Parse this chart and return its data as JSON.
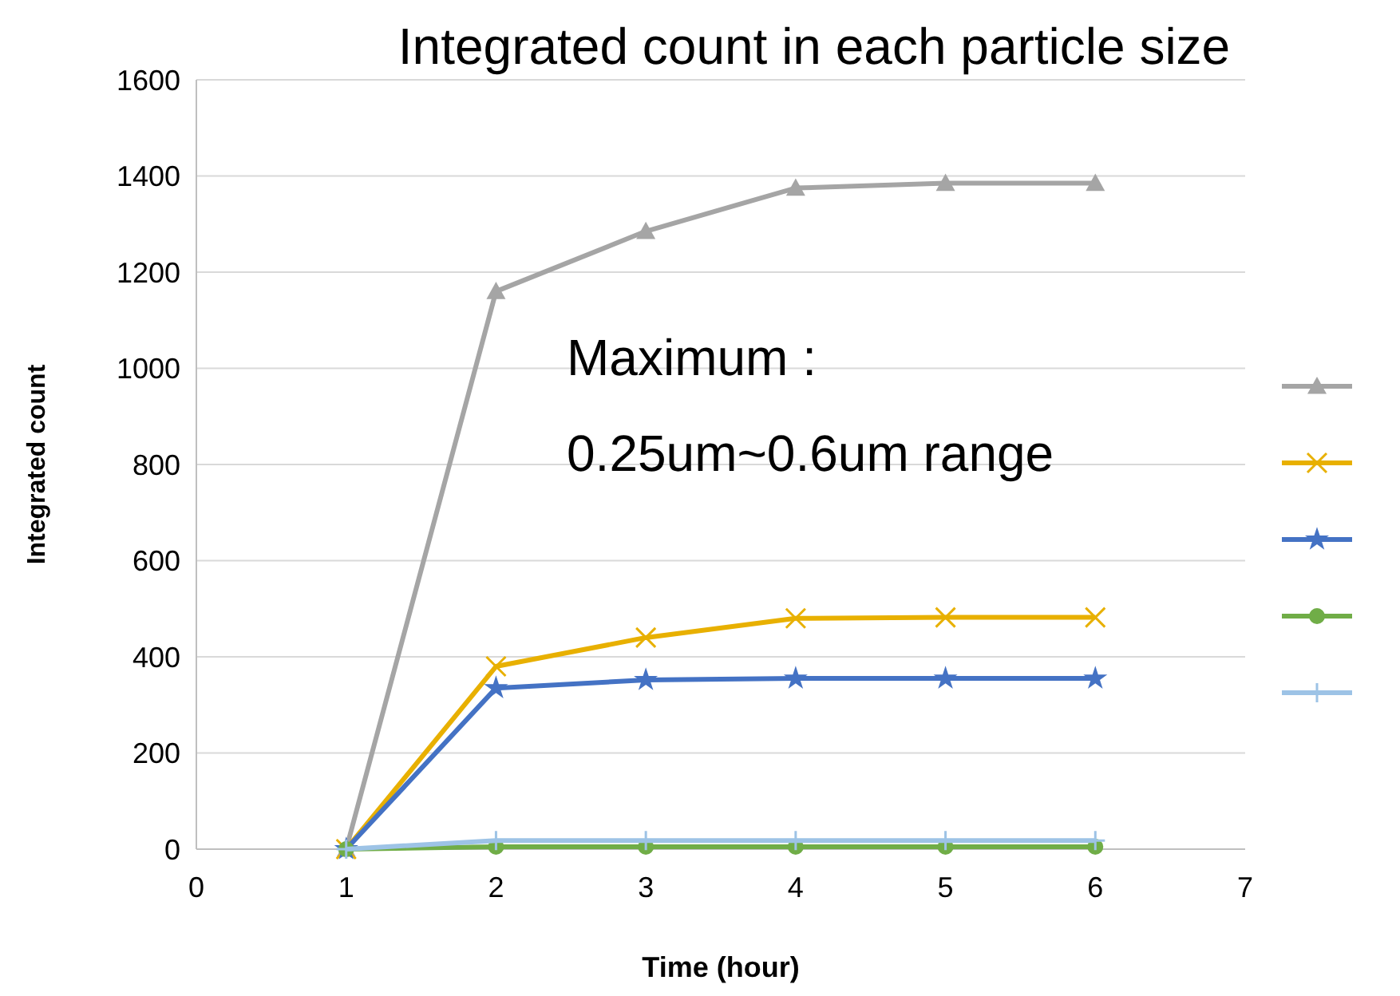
{
  "chart_data": {
    "type": "line",
    "title": "Integrated count in each particle size",
    "xlabel": "Time (hour)",
    "ylabel": "Integrated count",
    "x": [
      1,
      2,
      3,
      4,
      5,
      6
    ],
    "series": [
      {
        "color": "#a5a5a5",
        "marker": "triangle",
        "values": [
          0,
          1160,
          1285,
          1375,
          1385,
          1385
        ]
      },
      {
        "color": "#e8b000",
        "marker": "cross",
        "values": [
          0,
          380,
          440,
          480,
          482,
          482
        ]
      },
      {
        "color": "#4472c4",
        "marker": "star",
        "values": [
          0,
          335,
          352,
          355,
          355,
          355
        ]
      },
      {
        "color": "#70ad47",
        "marker": "circle",
        "values": [
          0,
          5,
          5,
          5,
          5,
          5
        ]
      },
      {
        "color": "#9dc3e6",
        "marker": "plus",
        "values": [
          0,
          18,
          18,
          18,
          18,
          18
        ]
      }
    ],
    "xlim": [
      0,
      7
    ],
    "xticks": [
      0,
      1,
      2,
      3,
      4,
      5,
      6,
      7
    ],
    "ylim": [
      0,
      1600
    ],
    "yticks": [
      0,
      200,
      400,
      600,
      800,
      1000,
      1200,
      1400,
      1600
    ],
    "grid": "y",
    "line_style": "solid",
    "annotations": [
      "Maximum :",
      "0.25um~0.6um range"
    ]
  }
}
